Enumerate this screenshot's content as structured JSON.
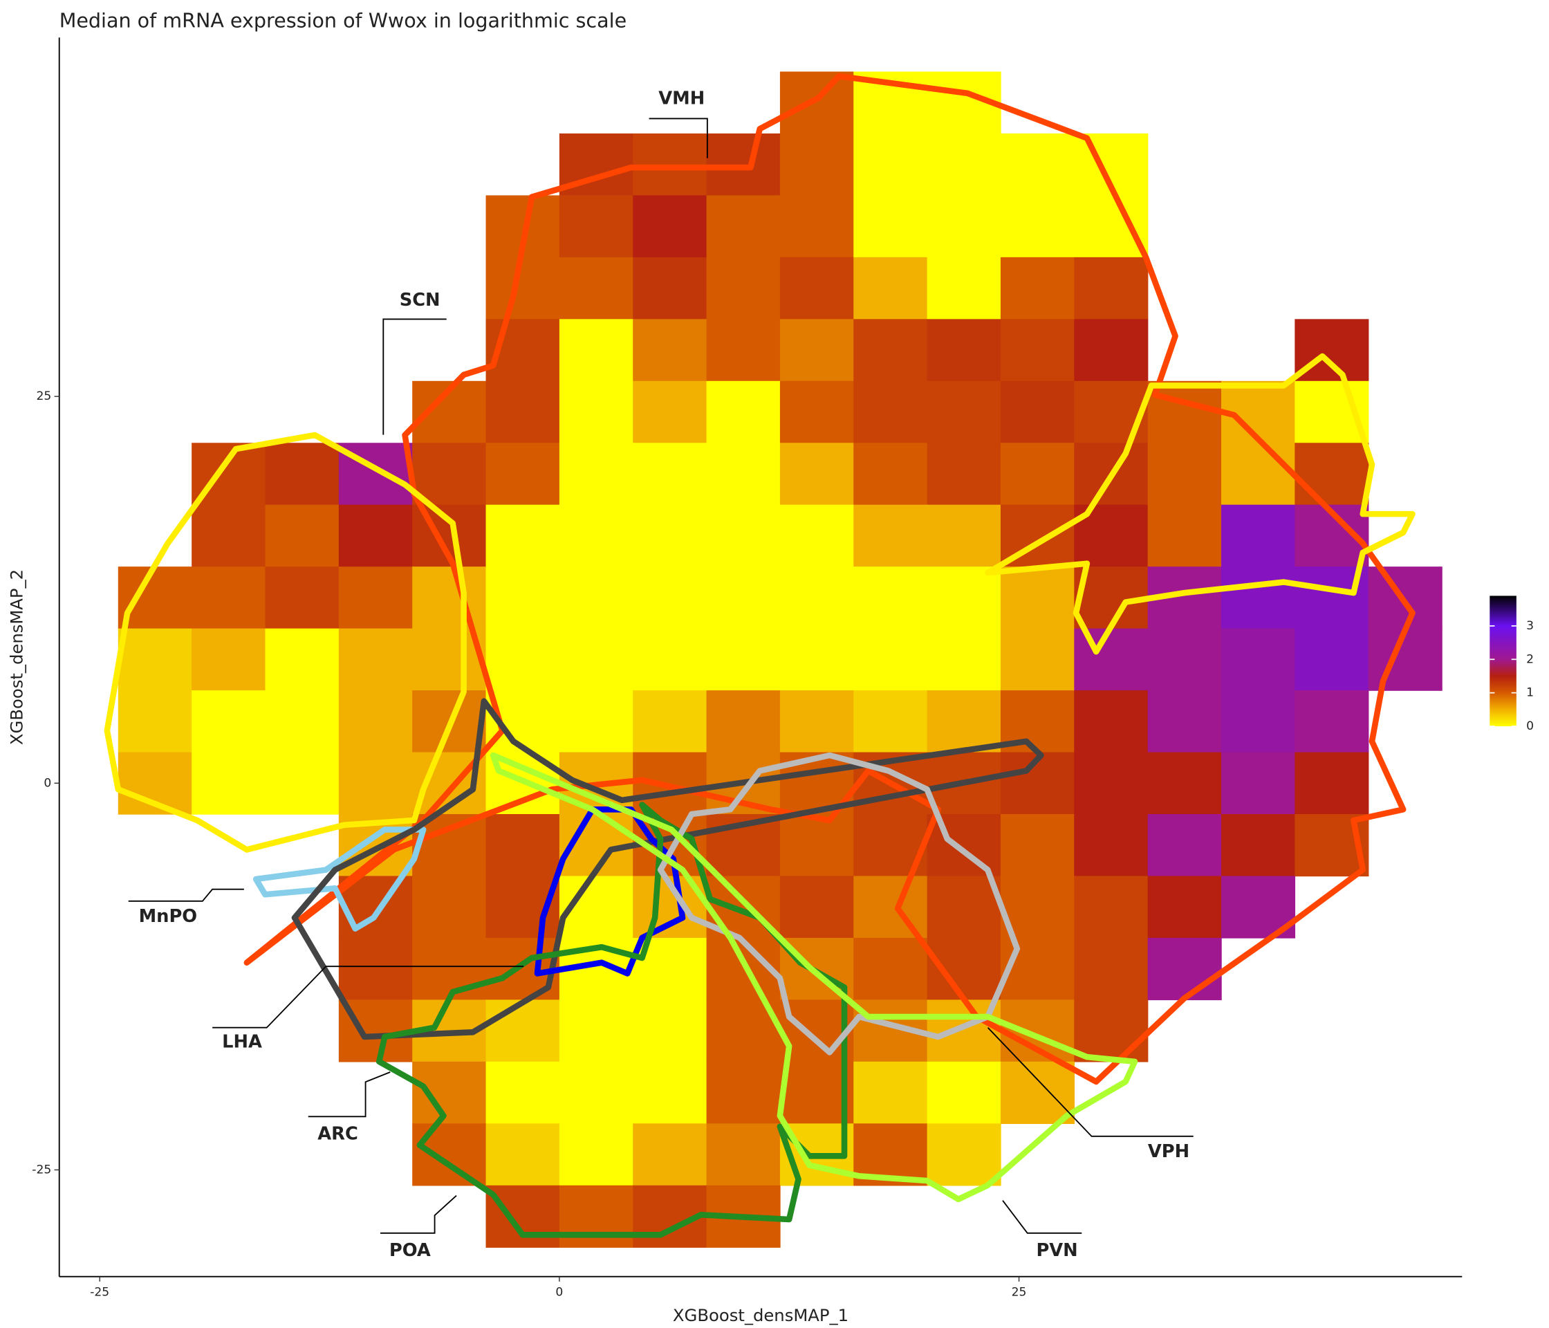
{
  "chart_data": {
    "type": "hexbin",
    "title": "Median of mRNA expression of Wwox in logarithmic scale",
    "xlabel": "XGBoost_densMAP_1",
    "ylabel": "XGBoost_densMAP_2",
    "xlim": [
      -27.2,
      49.1
    ],
    "ylim": [
      -31.9,
      48.2
    ],
    "xticks": [
      -25,
      0,
      25
    ],
    "yticks": [
      -25,
      0,
      25
    ],
    "colorbar_lim": [
      0,
      3.9
    ],
    "colorbar_ticks": [
      0,
      1,
      2,
      3
    ],
    "colorscale": [
      {
        "value": 0,
        "color": "#ffff00"
      },
      {
        "value": 0.5,
        "color": "#f2b000"
      },
      {
        "value": 1,
        "color": "#d65a00"
      },
      {
        "value": 1.5,
        "color": "#b52010"
      },
      {
        "value": 2,
        "color": "#a01890"
      },
      {
        "value": 3,
        "color": "#6a10f0"
      },
      {
        "value": 3.9,
        "color": "#000000"
      }
    ],
    "hex_x": [
      -22,
      -18,
      -14,
      -10,
      -6,
      -2,
      2,
      6,
      10,
      14,
      18,
      22,
      26,
      30,
      34,
      38,
      42,
      46
    ],
    "hex_y": [
      44,
      40,
      36,
      32,
      28,
      24,
      20,
      16,
      12,
      8,
      4,
      0,
      -4,
      -8,
      -12,
      -16,
      -20,
      -24,
      -28
    ],
    "hex_values": [
      [
        null,
        null,
        null,
        null,
        null,
        null,
        null,
        null,
        null,
        1,
        0,
        0,
        null,
        null,
        null,
        null,
        null,
        null
      ],
      [
        null,
        null,
        null,
        null,
        null,
        null,
        1.3,
        1.2,
        1.3,
        1,
        0,
        0,
        0,
        0,
        null,
        null,
        null,
        null
      ],
      [
        null,
        null,
        null,
        null,
        null,
        1,
        1.2,
        1.5,
        1,
        1,
        0,
        0,
        0,
        0,
        null,
        null,
        null,
        null
      ],
      [
        null,
        null,
        null,
        null,
        null,
        1,
        1,
        1.3,
        1,
        1.2,
        0.5,
        0,
        1,
        1.2,
        null,
        null,
        null,
        null
      ],
      [
        null,
        null,
        null,
        null,
        null,
        1.2,
        0,
        0.8,
        1,
        0.8,
        1.2,
        1.3,
        1.2,
        1.5,
        null,
        null,
        1.5,
        null
      ],
      [
        null,
        null,
        null,
        null,
        1,
        1.2,
        0,
        0.5,
        0,
        1,
        1.2,
        1.2,
        1.3,
        1.2,
        1,
        0.5,
        0,
        null
      ],
      [
        null,
        1.2,
        1.3,
        2,
        1.2,
        1,
        0,
        0,
        0,
        0.5,
        1,
        1.2,
        1,
        1.3,
        1,
        0.5,
        1.2,
        null
      ],
      [
        null,
        1.2,
        1,
        1.5,
        1.3,
        0,
        0,
        0,
        0,
        0,
        0.5,
        0.5,
        1.2,
        1.5,
        1,
        2.5,
        2,
        null
      ],
      [
        1,
        1,
        1.2,
        1,
        0.5,
        0,
        0,
        0,
        0,
        0,
        0,
        0,
        0.5,
        1.3,
        2,
        2.5,
        2.5,
        2
      ],
      [
        0.3,
        0.5,
        0,
        0.5,
        0.5,
        0,
        0,
        0,
        0,
        0,
        0,
        0,
        0.5,
        2,
        2,
        2.2,
        2.5,
        2
      ],
      [
        0.3,
        0,
        0,
        0.5,
        0.8,
        0,
        0,
        0.3,
        0.8,
        0.5,
        0.3,
        0.5,
        1,
        1.5,
        2,
        2.2,
        2,
        null
      ],
      [
        0.5,
        0,
        0,
        0.5,
        0.5,
        0,
        0.5,
        1,
        0.8,
        1,
        1.2,
        1.2,
        1.3,
        1.5,
        1.5,
        2,
        1.5,
        null
      ],
      [
        null,
        null,
        null,
        0.5,
        1,
        1.2,
        0.5,
        1,
        1.2,
        1,
        1.2,
        1.3,
        1,
        1.5,
        2,
        1.5,
        1.2,
        null
      ],
      [
        null,
        null,
        null,
        1.2,
        1,
        1.2,
        0,
        0.5,
        1,
        1.2,
        0.8,
        1.2,
        1,
        1.2,
        1.5,
        2,
        null,
        null
      ],
      [
        null,
        null,
        null,
        1.2,
        1,
        1,
        0,
        0,
        1,
        0.8,
        1,
        1.2,
        1,
        1.2,
        2,
        null,
        null,
        null
      ],
      [
        null,
        null,
        null,
        1,
        0.5,
        0.3,
        0,
        0,
        1,
        1,
        0.8,
        0.5,
        0.8,
        1.2,
        null,
        null,
        null,
        null
      ],
      [
        null,
        null,
        null,
        null,
        0.8,
        0,
        0,
        0,
        1,
        1,
        0.3,
        0,
        0.5,
        null,
        null,
        null,
        null,
        null
      ],
      [
        null,
        null,
        null,
        null,
        1,
        0.3,
        0,
        0.5,
        0.8,
        0.3,
        1,
        0.3,
        null,
        null,
        null,
        null,
        null,
        null
      ],
      [
        null,
        null,
        null,
        null,
        null,
        1.2,
        1,
        1.2,
        1,
        null,
        null,
        null,
        null,
        null,
        null,
        null,
        null,
        null
      ]
    ],
    "regions": [
      {
        "name": "VMH",
        "color": "#ff4500",
        "outlines": [
          [
            [
              15.2,
              45.7
            ],
            [
              22.2,
              44.6
            ],
            [
              28.7,
              41.7
            ],
            [
              31.9,
              34.0
            ],
            [
              33.5,
              28.9
            ],
            [
              32.4,
              25.1
            ],
            [
              36.7,
              23.8
            ],
            [
              43.7,
              15.5
            ],
            [
              46.4,
              11.0
            ],
            [
              44.8,
              6.6
            ],
            [
              44.2,
              2.7
            ],
            [
              45.9,
              -1.7
            ],
            [
              43.2,
              -2.4
            ],
            [
              43.7,
              -5.6
            ],
            [
              39.4,
              -9.4
            ],
            [
              34.0,
              -13.9
            ],
            [
              29.2,
              -19.3
            ],
            [
              22.7,
              -15.1
            ],
            [
              18.4,
              -8.1
            ],
            [
              20.6,
              -1.7
            ],
            [
              16.8,
              0.8
            ],
            [
              14.7,
              -2.4
            ],
            [
              11.5,
              -1.7
            ],
            [
              4.5,
              0.2
            ],
            [
              -0.4,
              -0.4
            ],
            [
              -9.0,
              -4.3
            ],
            [
              -17.0,
              -11.6
            ],
            [
              -7.4,
              -2.4
            ],
            [
              -3.1,
              3.4
            ],
            [
              -4.7,
              9.8
            ],
            [
              -5.8,
              14.2
            ],
            [
              -7.9,
              18.7
            ],
            [
              -8.4,
              22.5
            ],
            [
              -5.2,
              26.4
            ],
            [
              -3.6,
              27.0
            ],
            [
              -2.5,
              31.5
            ],
            [
              -1.5,
              37.9
            ],
            [
              3.9,
              39.8
            ],
            [
              10.4,
              39.8
            ],
            [
              10.9,
              42.3
            ],
            [
              14.1,
              44.3
            ]
          ]
        ]
      },
      {
        "name": "SCN",
        "color": "#ffee00",
        "outlines": [
          [
            [
              -17.6,
              21.6
            ],
            [
              -13.3,
              22.5
            ],
            [
              -8.4,
              19.3
            ],
            [
              -5.8,
              16.8
            ],
            [
              -5.2,
              12.3
            ],
            [
              -5.2,
              5.9
            ],
            [
              -7.4,
              -0.4
            ],
            [
              -7.9,
              -2.4
            ],
            [
              -11.7,
              -2.7
            ],
            [
              -17.0,
              -4.3
            ],
            [
              -19.7,
              -2.4
            ],
            [
              -24.0,
              -0.4
            ],
            [
              -24.6,
              3.4
            ],
            [
              -23.5,
              11.0
            ],
            [
              -21.3,
              15.5
            ]
          ],
          [
            [
              32.2,
              25.7
            ],
            [
              39.4,
              25.7
            ],
            [
              41.5,
              27.6
            ],
            [
              42.6,
              26.4
            ],
            [
              44.2,
              20.6
            ],
            [
              43.7,
              17.4
            ],
            [
              46.4,
              17.4
            ],
            [
              45.9,
              16.2
            ],
            [
              43.7,
              14.9
            ],
            [
              43.2,
              12.3
            ],
            [
              39.4,
              13.0
            ],
            [
              34.0,
              12.3
            ],
            [
              30.8,
              11.7
            ],
            [
              29.2,
              8.5
            ],
            [
              28.1,
              11.0
            ],
            [
              28.7,
              14.2
            ],
            [
              23.3,
              13.6
            ],
            [
              28.7,
              17.4
            ],
            [
              30.8,
              21.3
            ]
          ]
        ]
      },
      {
        "name": "MnPO",
        "color": "#87ceeb",
        "outlines": [
          [
            [
              -16.5,
              -6.2
            ],
            [
              -12.7,
              -5.6
            ],
            [
              -9.5,
              -3.0
            ],
            [
              -7.4,
              -3.0
            ],
            [
              -7.9,
              -4.9
            ],
            [
              -10.1,
              -8.7
            ],
            [
              -11.1,
              -9.4
            ],
            [
              -12.2,
              -6.8
            ],
            [
              -16.0,
              -7.2
            ]
          ]
        ]
      },
      {
        "name": "LHA",
        "color": "#444444",
        "outlines": [
          [
            [
              -4.1,
              5.3
            ],
            [
              -2.5,
              2.7
            ],
            [
              0.7,
              0.2
            ],
            [
              3.4,
              -1.1
            ],
            [
              25.4,
              2.7
            ],
            [
              26.2,
              1.8
            ],
            [
              25.4,
              0.8
            ],
            [
              2.8,
              -4.3
            ],
            [
              0.2,
              -8.7
            ],
            [
              -0.6,
              -13.2
            ],
            [
              -4.7,
              -16.1
            ],
            [
              -10.6,
              -16.4
            ],
            [
              -14.4,
              -8.7
            ],
            [
              -12.2,
              -5.6
            ],
            [
              -7.9,
              -3.0
            ],
            [
              -4.7,
              -0.4
            ]
          ]
        ]
      },
      {
        "name": "ARC",
        "color": "#0000ee",
        "outlines": [
          [
            [
              1.8,
              -1.7
            ],
            [
              3.9,
              -1.7
            ],
            [
              5.0,
              -3.6
            ],
            [
              6.2,
              -4.9
            ],
            [
              6.7,
              -8.7
            ],
            [
              4.5,
              -10.0
            ],
            [
              3.7,
              -12.3
            ],
            [
              2.3,
              -11.6
            ],
            [
              -1.2,
              -12.3
            ],
            [
              -0.9,
              -8.7
            ],
            [
              0.2,
              -4.9
            ]
          ]
        ]
      },
      {
        "name": "POA",
        "color": "#228b22",
        "outlines": [
          [
            [
              4.5,
              -1.4
            ],
            [
              5.5,
              -3.6
            ],
            [
              5.2,
              -8.7
            ],
            [
              4.5,
              -11.3
            ],
            [
              2.3,
              -10.6
            ],
            [
              -1.5,
              -11.3
            ],
            [
              -3.1,
              -12.6
            ],
            [
              -5.8,
              -13.5
            ],
            [
              -6.8,
              -15.8
            ],
            [
              -9.5,
              -16.4
            ],
            [
              -9.8,
              -18.0
            ],
            [
              -7.4,
              -19.6
            ],
            [
              -6.3,
              -21.5
            ],
            [
              -7.6,
              -23.4
            ],
            [
              -3.6,
              -26.6
            ],
            [
              -2.0,
              -29.2
            ],
            [
              5.5,
              -29.2
            ],
            [
              7.7,
              -27.9
            ],
            [
              12.5,
              -28.2
            ],
            [
              13.0,
              -25.6
            ],
            [
              12.0,
              -22.2
            ],
            [
              13.6,
              -24.1
            ],
            [
              15.5,
              -24.1
            ],
            [
              15.5,
              -13.2
            ],
            [
              13.1,
              -11.6
            ],
            [
              10.9,
              -8.7
            ],
            [
              8.2,
              -7.5
            ],
            [
              7.2,
              -3.6
            ],
            [
              5.5,
              -2.4
            ]
          ]
        ]
      },
      {
        "name": "VPH",
        "color": "#bbbbbb",
        "outlines": [
          [
            [
              10.9,
              0.8
            ],
            [
              14.7,
              1.8
            ],
            [
              17.9,
              0.8
            ],
            [
              20.0,
              -0.4
            ],
            [
              21.1,
              -3.6
            ],
            [
              23.3,
              -5.6
            ],
            [
              24.9,
              -10.7
            ],
            [
              23.3,
              -15.1
            ],
            [
              20.6,
              -16.4
            ],
            [
              16.3,
              -15.1
            ],
            [
              14.7,
              -17.4
            ],
            [
              12.5,
              -15.1
            ],
            [
              12.0,
              -12.6
            ],
            [
              9.8,
              -10.0
            ],
            [
              7.2,
              -8.7
            ],
            [
              5.5,
              -5.6
            ],
            [
              7.2,
              -2.0
            ],
            [
              9.3,
              -1.7
            ]
          ]
        ]
      },
      {
        "name": "PVN",
        "color": "#adff2f",
        "outlines": [
          [
            [
              -3.6,
              1.8
            ],
            [
              -0.4,
              0.2
            ],
            [
              6.1,
              -3.0
            ],
            [
              8.3,
              -5.6
            ],
            [
              10.4,
              -8.1
            ],
            [
              13.6,
              -11.9
            ],
            [
              16.8,
              -15.1
            ],
            [
              23.3,
              -15.1
            ],
            [
              28.7,
              -17.7
            ],
            [
              31.3,
              -18.0
            ],
            [
              30.8,
              -19.3
            ],
            [
              27.6,
              -21.5
            ],
            [
              23.3,
              -26.0
            ],
            [
              21.7,
              -26.9
            ],
            [
              20.0,
              -25.7
            ],
            [
              16.3,
              -25.4
            ],
            [
              13.6,
              -24.7
            ],
            [
              12.0,
              -21.5
            ],
            [
              12.5,
              -17.0
            ],
            [
              9.3,
              -10.0
            ],
            [
              6.7,
              -5.6
            ],
            [
              1.8,
              -1.7
            ],
            [
              -3.3,
              0.8
            ]
          ]
        ]
      }
    ]
  }
}
